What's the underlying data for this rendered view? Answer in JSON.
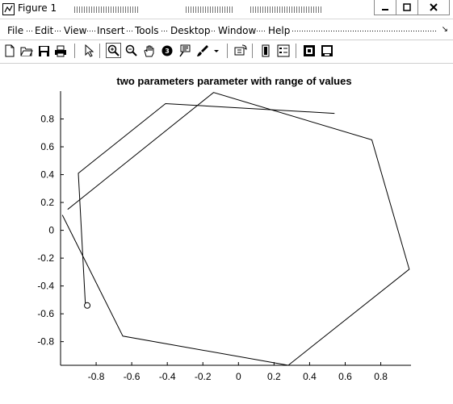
{
  "window": {
    "title": "Figure 1"
  },
  "menu": [
    "File",
    "Edit",
    "View",
    "Insert",
    "Tools",
    "Desktop",
    "Window",
    "Help"
  ],
  "toolbar_icons": [
    "new-figure-icon",
    "open-file-icon",
    "save-icon",
    "print-icon",
    "pointer-icon",
    "zoom-in-icon",
    "zoom-out-icon",
    "pan-icon",
    "rotate-3d-icon",
    "data-cursor-icon",
    "brush-icon",
    "link-plot-icon",
    "colorbar-icon",
    "legend-icon",
    "hide-plot-tools-icon",
    "show-plot-tools-icon"
  ],
  "chart_data": {
    "type": "line",
    "title": "two parameters parameter with range of values",
    "xlabel": "",
    "ylabel": "",
    "xlim": [
      -1.0,
      0.97
    ],
    "ylim": [
      -0.97,
      1.0
    ],
    "xticks": [
      "-0.8",
      "-0.6",
      "-0.4",
      "-0.2",
      "0",
      "0.2",
      "0.4",
      "0.6",
      "0.8"
    ],
    "yticks": [
      "0.8",
      "0.6",
      "0.4",
      "0.2",
      "0",
      "-0.2",
      "-0.4",
      "-0.6",
      "-0.8"
    ],
    "xtick_values": [
      -0.8,
      -0.6,
      -0.4,
      -0.2,
      0,
      0.2,
      0.4,
      0.6,
      0.8
    ],
    "ytick_values": [
      0.8,
      0.6,
      0.4,
      0.2,
      0,
      -0.2,
      -0.4,
      -0.6,
      -0.8
    ],
    "grid": false,
    "series": [
      {
        "color": "#000000",
        "x": [
          -0.86,
          -0.9,
          -0.41,
          0.54
        ],
        "y": [
          -0.54,
          0.41,
          0.91,
          0.84
        ]
      },
      {
        "color": "#000000",
        "x": [
          -0.99,
          -0.65,
          0.19,
          0.28,
          0.96,
          0.75,
          -0.14,
          -0.96
        ],
        "y": [
          0.11,
          -0.76,
          -0.95,
          -0.97,
          -0.28,
          0.65,
          0.99,
          0.15
        ]
      }
    ],
    "markers": [
      {
        "x": -0.85,
        "y": -0.54,
        "shape": "circle"
      }
    ]
  }
}
